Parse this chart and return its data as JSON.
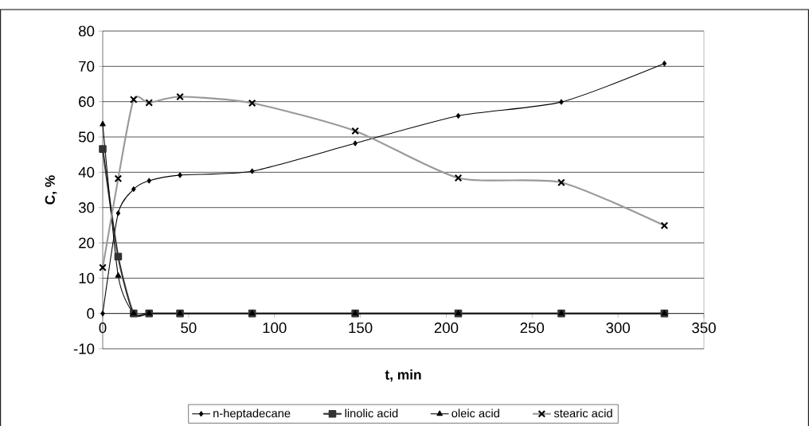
{
  "chart_data": {
    "type": "line",
    "xlabel": "t, min",
    "ylabel": "C, %",
    "x": [
      0,
      9,
      18,
      27,
      45,
      87,
      147,
      207,
      267,
      327
    ],
    "xlim": [
      0,
      350
    ],
    "xticks": [
      0,
      50,
      100,
      150,
      200,
      250,
      300,
      350
    ],
    "ylim": [
      -10,
      80
    ],
    "yticks": [
      -10,
      0,
      10,
      20,
      30,
      40,
      50,
      60,
      70,
      80
    ],
    "grid": "y",
    "legend": "bottom",
    "series": [
      {
        "name": "n-heptadecane",
        "color": "#000000",
        "marker": "diamond",
        "values": [
          0,
          28.4,
          35.2,
          37.6,
          39.2,
          40.3,
          48.2,
          56.0,
          59.9,
          70.8
        ]
      },
      {
        "name": "linolic acid",
        "color": "#333333",
        "marker": "square",
        "values": [
          46.6,
          16.1,
          0,
          0,
          0,
          0,
          0,
          0,
          0,
          0
        ]
      },
      {
        "name": "oleic acid",
        "color": "#000000",
        "marker": "triangle",
        "values": [
          53.6,
          10.7,
          0,
          0,
          0,
          0,
          0,
          0,
          0,
          0
        ]
      },
      {
        "name": "stearic acid",
        "color": "#999999",
        "marker": "cross",
        "values": [
          13.0,
          38.2,
          60.6,
          59.7,
          61.4,
          59.6,
          51.7,
          38.4,
          37.1,
          24.9
        ]
      }
    ]
  }
}
